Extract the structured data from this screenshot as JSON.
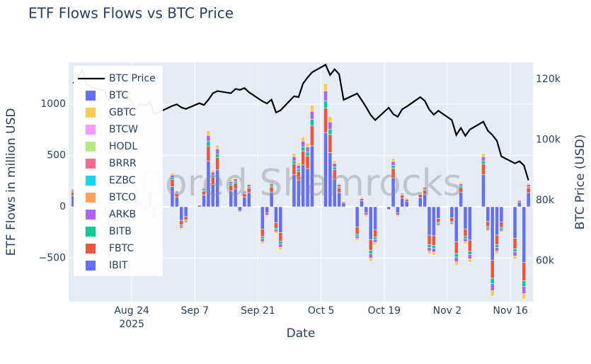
{
  "chart_data": {
    "type": "bar",
    "title": "ETF Flows Flows vs BTC Price",
    "x_label": "Date",
    "y_label": "ETF Flows in million USD",
    "y2_label": "BTC Price (USD)",
    "watermark": "Bored Shamrocks",
    "barmode": "relative",
    "grid": true,
    "legend_position": "upper-left",
    "xlim": [
      "2025-08-10",
      "2025-11-21"
    ],
    "xticks": [
      {
        "value": "2025-08-24",
        "label": "Aug 24"
      },
      {
        "value": "2025-09-07",
        "label": "Sep 7"
      },
      {
        "value": "2025-09-21",
        "label": "Sep 21"
      },
      {
        "value": "2025-10-05",
        "label": "Oct 5"
      },
      {
        "value": "2025-10-19",
        "label": "Oct 19"
      },
      {
        "value": "2025-11-02",
        "label": "Nov 2"
      },
      {
        "value": "2025-11-16",
        "label": "Nov 16"
      }
    ],
    "x_year_label": "2025",
    "ylim": [
      -924,
      1407
    ],
    "yticks": [
      {
        "value": -500,
        "label": "−500"
      },
      0,
      500,
      1000
    ],
    "y2lim": [
      46500,
      125600
    ],
    "y2ticks": [
      {
        "value": 60000,
        "label": "60k"
      },
      {
        "value": 80000,
        "label": "80k"
      },
      {
        "value": 100000,
        "label": "100k"
      },
      {
        "value": 120000,
        "label": "120k"
      }
    ],
    "x": [
      "2025-08-11",
      "2025-08-12",
      "2025-08-13",
      "2025-08-14",
      "2025-08-15",
      "2025-08-18",
      "2025-08-19",
      "2025-08-20",
      "2025-08-21",
      "2025-08-22",
      "2025-08-25",
      "2025-08-26",
      "2025-08-27",
      "2025-08-28",
      "2025-08-29",
      "2025-09-02",
      "2025-09-03",
      "2025-09-04",
      "2025-09-05",
      "2025-09-08",
      "2025-09-09",
      "2025-09-10",
      "2025-09-11",
      "2025-09-12",
      "2025-09-15",
      "2025-09-16",
      "2025-09-17",
      "2025-09-18",
      "2025-09-19",
      "2025-09-22",
      "2025-09-23",
      "2025-09-24",
      "2025-09-25",
      "2025-09-26",
      "2025-09-29",
      "2025-09-30",
      "2025-10-01",
      "2025-10-02",
      "2025-10-03",
      "2025-10-06",
      "2025-10-07",
      "2025-10-08",
      "2025-10-09",
      "2025-10-10",
      "2025-10-13",
      "2025-10-14",
      "2025-10-15",
      "2025-10-16",
      "2025-10-17",
      "2025-10-20",
      "2025-10-21",
      "2025-10-22",
      "2025-10-23",
      "2025-10-24",
      "2025-10-27",
      "2025-10-28",
      "2025-10-29",
      "2025-10-30",
      "2025-10-31",
      "2025-11-03",
      "2025-11-04",
      "2025-11-05",
      "2025-11-06",
      "2025-11-07",
      "2025-11-10",
      "2025-11-11",
      "2025-11-12",
      "2025-11-13",
      "2025-11-14",
      "2025-11-17",
      "2025-11-18",
      "2025-11-19",
      "2025-11-20"
    ],
    "series": [
      {
        "name": "IBIT",
        "color": "#636efa",
        "values": [
          108,
          39,
          52,
          138,
          -8,
          -73,
          -314,
          -187,
          -116,
          14,
          131,
          53,
          -36,
          107,
          -76,
          198,
          96,
          -132,
          -96,
          15,
          114,
          444,
          216,
          360,
          156,
          174,
          -36,
          96,
          138,
          -216,
          -60,
          144,
          -156,
          -252,
          312,
          258,
          408,
          372,
          594,
          720,
          528,
          270,
          138,
          36,
          -198,
          60,
          -60,
          -318,
          -222,
          -24,
          282,
          -60,
          84,
          54,
          90,
          120,
          -276,
          -282,
          -114,
          -108,
          -342,
          144,
          -216,
          -324,
          312,
          -144,
          -522,
          -276,
          -150,
          -306,
          45,
          -540,
          138
        ]
      },
      {
        "name": "FBTC",
        "color": "#ef553b",
        "values": [
          36,
          13,
          17,
          46,
          -3,
          -24,
          -105,
          -62,
          -39,
          5,
          44,
          18,
          -12,
          36,
          -25,
          66,
          32,
          -44,
          -32,
          5,
          38,
          148,
          72,
          120,
          52,
          58,
          -12,
          32,
          46,
          -72,
          -20,
          48,
          -52,
          -84,
          104,
          86,
          136,
          124,
          198,
          240,
          176,
          90,
          46,
          12,
          -66,
          20,
          -20,
          -106,
          -74,
          -8,
          94,
          -20,
          28,
          18,
          30,
          40,
          -92,
          -94,
          -38,
          -36,
          -114,
          48,
          -72,
          -108,
          104,
          -48,
          -174,
          -92,
          -50,
          -102,
          15,
          -180,
          46
        ]
      },
      {
        "name": "BITB",
        "color": "#00cc96",
        "values": [
          11,
          4,
          5,
          14,
          -1,
          -7,
          -31,
          -19,
          -12,
          1,
          13,
          5,
          -4,
          11,
          -8,
          20,
          10,
          -13,
          -10,
          2,
          11,
          44,
          22,
          36,
          16,
          17,
          -4,
          10,
          14,
          -22,
          -6,
          14,
          -16,
          -25,
          31,
          26,
          41,
          37,
          59,
          72,
          53,
          27,
          14,
          4,
          -20,
          6,
          -6,
          -32,
          -22,
          -3,
          28,
          -6,
          8,
          5,
          9,
          12,
          -28,
          -28,
          -12,
          -11,
          -34,
          14,
          -22,
          -32,
          31,
          -15,
          -52,
          -28,
          -15,
          -31,
          5,
          -54,
          14
        ]
      },
      {
        "name": "ARKB",
        "color": "#ab63fa",
        "values": [
          14,
          5,
          7,
          18,
          -1,
          -10,
          -42,
          -25,
          -16,
          2,
          18,
          7,
          -5,
          14,
          -10,
          26,
          13,
          -18,
          -13,
          2,
          15,
          59,
          29,
          48,
          21,
          23,
          -5,
          13,
          18,
          -29,
          -8,
          19,
          -21,
          -34,
          42,
          34,
          54,
          50,
          79,
          96,
          70,
          36,
          18,
          5,
          -26,
          8,
          -8,
          -42,
          -30,
          -3,
          38,
          -8,
          11,
          7,
          12,
          16,
          -37,
          -38,
          -15,
          -14,
          -46,
          19,
          -29,
          -43,
          42,
          -19,
          -70,
          -37,
          -20,
          -41,
          6,
          -72,
          18
        ]
      },
      {
        "name": "BTCO",
        "color": "#ffa15a",
        "values": [
          0,
          0,
          0,
          0,
          0,
          0,
          0,
          0,
          0,
          0,
          0,
          0,
          0,
          0,
          0,
          0,
          0,
          0,
          0,
          0,
          0,
          0,
          0,
          0,
          0,
          0,
          0,
          0,
          0,
          0,
          0,
          0,
          0,
          0,
          0,
          0,
          0,
          0,
          0,
          0,
          0,
          0,
          0,
          0,
          0,
          0,
          0,
          0,
          0,
          0,
          0,
          0,
          0,
          0,
          0,
          0,
          0,
          0,
          0,
          0,
          0,
          0,
          0,
          0,
          0,
          0,
          0,
          0,
          0,
          0,
          0,
          0,
          0
        ]
      },
      {
        "name": "EZBC",
        "color": "#19d3f3",
        "values": [
          0,
          0,
          0,
          0,
          0,
          0,
          0,
          0,
          0,
          0,
          0,
          0,
          0,
          0,
          0,
          0,
          0,
          0,
          0,
          0,
          0,
          0,
          0,
          0,
          0,
          0,
          0,
          0,
          0,
          0,
          0,
          0,
          0,
          0,
          0,
          0,
          0,
          0,
          0,
          0,
          0,
          0,
          0,
          0,
          0,
          0,
          0,
          0,
          0,
          0,
          0,
          0,
          0,
          0,
          0,
          0,
          0,
          0,
          0,
          0,
          0,
          0,
          0,
          0,
          0,
          0,
          0,
          0,
          0,
          0,
          0,
          0,
          0
        ]
      },
      {
        "name": "BRRR",
        "color": "#ff6692",
        "values": [
          0,
          0,
          0,
          0,
          0,
          0,
          0,
          0,
          0,
          0,
          0,
          0,
          0,
          0,
          0,
          0,
          0,
          0,
          0,
          0,
          0,
          0,
          0,
          0,
          0,
          0,
          0,
          0,
          0,
          0,
          0,
          0,
          0,
          0,
          0,
          0,
          0,
          0,
          0,
          0,
          0,
          0,
          0,
          0,
          0,
          0,
          0,
          0,
          0,
          0,
          0,
          0,
          0,
          0,
          0,
          0,
          0,
          0,
          0,
          0,
          0,
          0,
          0,
          0,
          0,
          0,
          0,
          0,
          0,
          0,
          0,
          0,
          0
        ]
      },
      {
        "name": "HODL",
        "color": "#b6e880",
        "values": [
          0,
          0,
          0,
          0,
          0,
          0,
          0,
          0,
          0,
          0,
          0,
          0,
          0,
          0,
          0,
          0,
          0,
          0,
          0,
          0,
          0,
          0,
          0,
          0,
          0,
          0,
          0,
          0,
          0,
          0,
          0,
          0,
          0,
          0,
          0,
          0,
          0,
          0,
          0,
          0,
          0,
          0,
          0,
          0,
          0,
          0,
          0,
          0,
          0,
          0,
          0,
          0,
          0,
          0,
          0,
          0,
          0,
          0,
          0,
          0,
          0,
          0,
          0,
          0,
          0,
          0,
          0,
          0,
          0,
          0,
          0,
          0,
          0
        ]
      },
      {
        "name": "BTCW",
        "color": "#ff97ff",
        "values": [
          0,
          0,
          0,
          0,
          0,
          0,
          0,
          0,
          0,
          0,
          0,
          0,
          0,
          0,
          0,
          0,
          0,
          0,
          0,
          0,
          0,
          0,
          0,
          0,
          0,
          0,
          0,
          0,
          0,
          0,
          0,
          0,
          0,
          0,
          0,
          0,
          0,
          0,
          0,
          0,
          0,
          0,
          0,
          0,
          0,
          0,
          0,
          0,
          0,
          0,
          0,
          0,
          0,
          0,
          0,
          0,
          0,
          0,
          0,
          0,
          0,
          0,
          0,
          0,
          0,
          0,
          0,
          0,
          0,
          0,
          0,
          0,
          0
        ]
      },
      {
        "name": "GBTC",
        "color": "#fecb52",
        "values": [
          11,
          4,
          5,
          14,
          -1,
          -8,
          -31,
          -18,
          -11,
          1,
          13,
          5,
          -3,
          11,
          -7,
          20,
          9,
          -13,
          -9,
          1,
          12,
          45,
          21,
          36,
          15,
          18,
          -3,
          9,
          14,
          -21,
          -6,
          15,
          -15,
          -25,
          31,
          26,
          41,
          37,
          60,
          72,
          53,
          27,
          14,
          3,
          -20,
          6,
          -6,
          -32,
          -22,
          -2,
          28,
          -6,
          9,
          6,
          9,
          12,
          -27,
          -28,
          -11,
          -11,
          -34,
          15,
          -21,
          -33,
          31,
          -14,
          -52,
          -27,
          -15,
          -30,
          4,
          -54,
          14
        ]
      },
      {
        "name": "BTC",
        "color": "#636efa",
        "values": [
          0,
          0,
          0,
          0,
          0,
          0,
          0,
          0,
          0,
          0,
          0,
          0,
          0,
          0,
          0,
          0,
          0,
          0,
          0,
          0,
          0,
          0,
          0,
          0,
          0,
          0,
          0,
          0,
          0,
          0,
          0,
          0,
          0,
          0,
          0,
          0,
          0,
          0,
          0,
          0,
          0,
          0,
          0,
          0,
          0,
          0,
          0,
          0,
          0,
          0,
          0,
          0,
          0,
          0,
          0,
          0,
          0,
          0,
          0,
          0,
          0,
          0,
          0,
          0,
          0,
          0,
          0,
          0,
          0,
          0,
          0,
          0,
          0
        ]
      },
      {
        "name": "BTC Price",
        "type": "line",
        "axis": "y2",
        "color": "#000000",
        "values": [
          118700,
          120100,
          123300,
          118400,
          117400,
          116200,
          112900,
          114300,
          112500,
          116900,
          110100,
          111800,
          111300,
          112600,
          108400,
          111200,
          111700,
          110700,
          110200,
          112100,
          111500,
          113200,
          115400,
          116100,
          115400,
          116800,
          116500,
          117100,
          115700,
          112700,
          112000,
          113300,
          109000,
          109700,
          114400,
          114100,
          118600,
          120600,
          122300,
          124800,
          121400,
          123300,
          121700,
          113200,
          115300,
          113100,
          110800,
          108200,
          106500,
          110600,
          108500,
          107600,
          110100,
          111000,
          114100,
          112900,
          110000,
          108300,
          109600,
          106500,
          101600,
          103900,
          101300,
          103400,
          106000,
          103000,
          101600,
          99700,
          94500,
          92200,
          92900,
          91500,
          86600
        ]
      }
    ]
  }
}
